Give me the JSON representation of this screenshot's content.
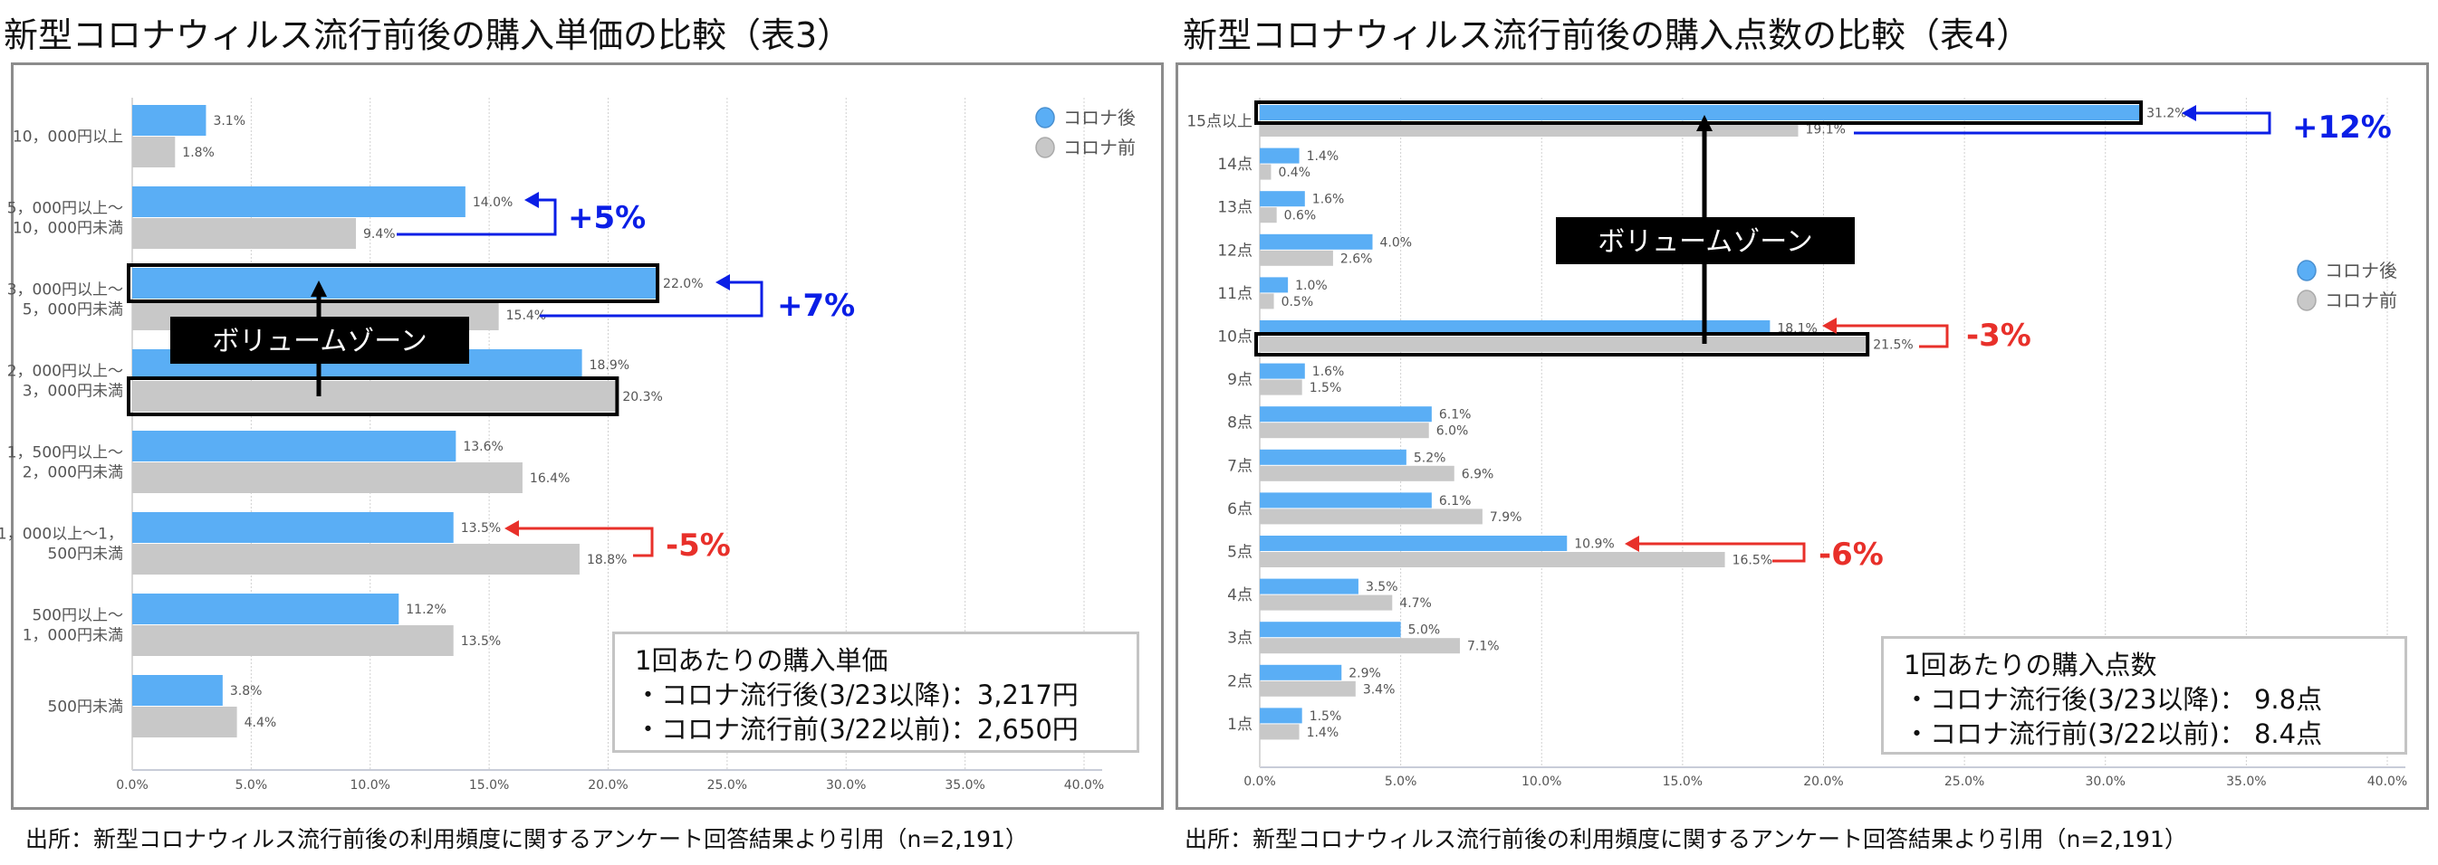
{
  "colors": {
    "after": "#5aaef5",
    "before": "#c8c8c8",
    "increase": "#0a1ee6",
    "decrease": "#e8302a",
    "highlight": "#000000"
  },
  "chart_data": [
    {
      "type": "bar",
      "orientation": "horizontal",
      "title": "新型コロナウィルス流行前後の購入単価の比較（表3）",
      "categories": [
        [
          "10，000円以上"
        ],
        [
          "5，000円以上～",
          "10，000円未満"
        ],
        [
          "3，000円以上～",
          "5，000円未満"
        ],
        [
          "2，000円以上～",
          "3，000円未満"
        ],
        [
          "1，500円以上～",
          "2，000円未満"
        ],
        [
          "1，000以上～1，",
          "500円未満"
        ],
        [
          "500円以上～",
          "1，000円未満"
        ],
        [
          "500円未満"
        ]
      ],
      "series": [
        {
          "name": "コロナ後",
          "values": [
            3.1,
            14.0,
            22.0,
            18.9,
            13.6,
            13.5,
            11.2,
            3.8
          ]
        },
        {
          "name": "コロナ前",
          "values": [
            1.8,
            9.4,
            15.4,
            20.3,
            16.4,
            18.8,
            13.5,
            4.4
          ]
        }
      ],
      "xlim": [
        0,
        40
      ],
      "xticks": [
        "0.0%",
        "5.0%",
        "10.0%",
        "15.0%",
        "20.0%",
        "25.0%",
        "30.0%",
        "35.0%",
        "40.0%"
      ],
      "grid": true,
      "legend": "top-right",
      "annotations": [
        {
          "text": "+5%",
          "category": 1,
          "kind": "increase"
        },
        {
          "text": "+7%",
          "category": 2,
          "kind": "increase"
        },
        {
          "text": "-5%",
          "category": 5,
          "kind": "decrease"
        }
      ],
      "volume_zone": {
        "label": "ボリュームゾーン",
        "from": "2，000円以上～3，000円未満 (コロナ前)",
        "to": "3，000円以上～5，000円未満 (コロナ後)"
      },
      "info": {
        "title": "1回あたりの購入単価",
        "lines": [
          "・コロナ流行後(3/23以降)：3,217円",
          "・コロナ流行前(3/22以前)：2,650円"
        ]
      },
      "source": "出所：新型コロナウィルス流行前後の利用頻度に関するアンケート回答結果より引用（n=2,191）"
    },
    {
      "type": "bar",
      "orientation": "horizontal",
      "title": "新型コロナウィルス流行前後の購入点数の比較（表4）",
      "categories": [
        [
          "15点以上"
        ],
        [
          "14点"
        ],
        [
          "13点"
        ],
        [
          "12点"
        ],
        [
          "11点"
        ],
        [
          "10点"
        ],
        [
          "9点"
        ],
        [
          "8点"
        ],
        [
          "7点"
        ],
        [
          "6点"
        ],
        [
          "5点"
        ],
        [
          "4点"
        ],
        [
          "3点"
        ],
        [
          "2点"
        ],
        [
          "1点"
        ]
      ],
      "series": [
        {
          "name": "コロナ後",
          "values": [
            31.2,
            1.4,
            1.6,
            4.0,
            1.0,
            18.1,
            1.6,
            6.1,
            5.2,
            6.1,
            10.9,
            3.5,
            5.0,
            2.9,
            1.5
          ]
        },
        {
          "name": "コロナ前",
          "values": [
            19.1,
            0.4,
            0.6,
            2.6,
            0.5,
            21.5,
            1.5,
            6.0,
            6.9,
            7.9,
            16.5,
            4.7,
            7.1,
            3.4,
            1.4
          ]
        }
      ],
      "xlim": [
        0,
        40
      ],
      "xticks": [
        "0.0%",
        "5.0%",
        "10.0%",
        "15.0%",
        "20.0%",
        "25.0%",
        "30.0%",
        "35.0%",
        "40.0%"
      ],
      "grid": true,
      "legend": "right",
      "annotations": [
        {
          "text": "+12%",
          "category": 0,
          "kind": "increase"
        },
        {
          "text": "-3%",
          "category": 5,
          "kind": "decrease"
        },
        {
          "text": "-6%",
          "category": 10,
          "kind": "decrease"
        }
      ],
      "volume_zone": {
        "label": "ボリュームゾーン",
        "from": "10点 (コロナ前)",
        "to": "15点以上 (コロナ後)"
      },
      "info": {
        "title": "1回あたりの購入点数",
        "lines": [
          "・コロナ流行後(3/23以降)： 9.8点",
          "・コロナ流行前(3/22以前)： 8.4点"
        ]
      },
      "source": "出所：新型コロナウィルス流行前後の利用頻度に関するアンケート回答結果より引用（n=2,191）"
    }
  ]
}
